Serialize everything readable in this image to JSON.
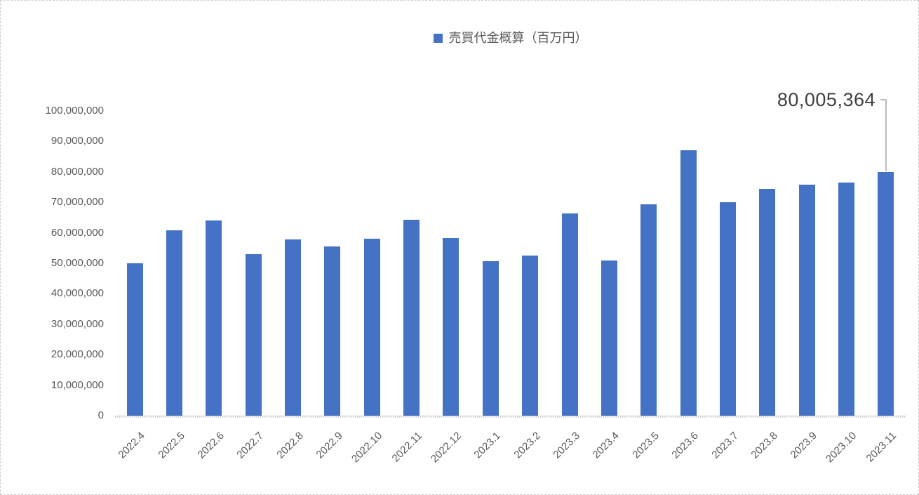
{
  "colors": {
    "bar": "#4472C4",
    "axis_text": "#595959",
    "annotation_text": "#404040",
    "callout_line": "#A6A6A6",
    "axis_line": "#C3C3C3",
    "frame_border": "#CCCCCC"
  },
  "chart_data": {
    "type": "bar",
    "legend": "売買代金概算（百万円）",
    "legend_position": "top",
    "grid": false,
    "categories": [
      "2022.4",
      "2022.5",
      "2022.6",
      "2022.7",
      "2022.8",
      "2022.9",
      "2022.10",
      "2022.11",
      "2022.12",
      "2023.1",
      "2023.2",
      "2023.3",
      "2023.4",
      "2023.5",
      "2023.6",
      "2023.7",
      "2023.8",
      "2023.9",
      "2023.10",
      "2023.11"
    ],
    "values": [
      50000000,
      60800000,
      64000000,
      52900000,
      57800000,
      55600000,
      58100000,
      64400000,
      58300000,
      50800000,
      52500000,
      66300000,
      51000000,
      69400000,
      87000000,
      70000000,
      74500000,
      75700000,
      76600000,
      80005364
    ],
    "ylim": [
      0,
      100000000
    ],
    "y_ticks": [
      "0",
      "10,000,000",
      "20,000,000",
      "30,000,000",
      "40,000,000",
      "50,000,000",
      "60,000,000",
      "70,000,000",
      "80,000,000",
      "90,000,000",
      "100,000,000"
    ],
    "xlabel": "",
    "ylabel": "",
    "annotation": {
      "text": "80,005,364",
      "target_category": "2023.11"
    }
  }
}
